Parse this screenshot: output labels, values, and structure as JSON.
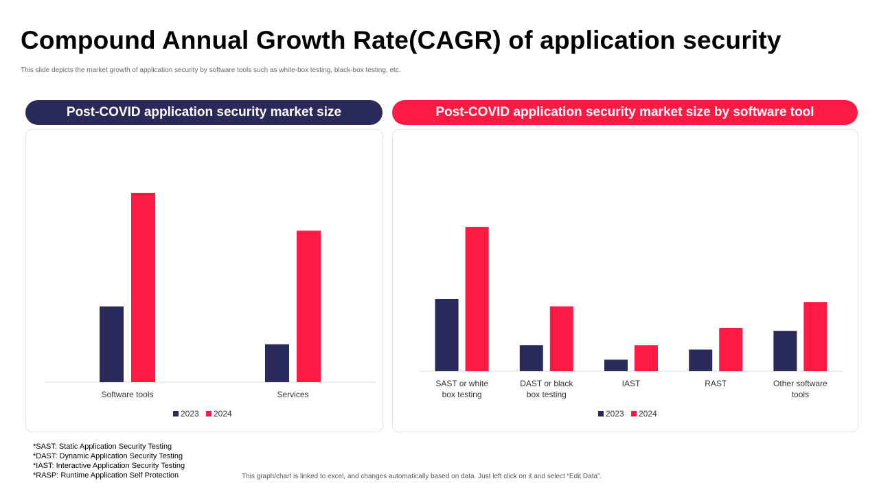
{
  "title": "Compound Annual Growth Rate(CAGR) of application security",
  "subtitle": "This slide depicts the market growth of application security by software tools such as white-box testing, black-box testing, etc.",
  "left_panel": {
    "header": "Post-COVID application security market size"
  },
  "right_panel": {
    "header": "Post-COVID application security market size by software tool"
  },
  "colors": {
    "navy": "#2a2a5a",
    "red": "#ff1a44"
  },
  "chart_data": [
    {
      "type": "bar",
      "title": "Post-COVID application security market size",
      "categories": [
        "Software tools",
        "Services"
      ],
      "series": [
        {
          "name": "2023",
          "color": "#2a2a5a",
          "values": [
            40,
            20
          ]
        },
        {
          "name": "2024",
          "color": "#ff1a44",
          "values": [
            100,
            80
          ]
        }
      ],
      "ylim": [
        0,
        100
      ],
      "grid": false,
      "legend": "bottom"
    },
    {
      "type": "bar",
      "title": "Post-COVID application security market size by software tool",
      "categories": [
        "SAST or white box testing",
        "DAST or black box testing",
        "IAST",
        "RAST",
        "Other software tools"
      ],
      "series": [
        {
          "name": "2023",
          "color": "#2a2a5a",
          "values": [
            50,
            18,
            8,
            15,
            28
          ]
        },
        {
          "name": "2024",
          "color": "#ff1a44",
          "values": [
            100,
            45,
            18,
            30,
            48
          ]
        }
      ],
      "ylim": [
        0,
        100
      ],
      "grid": false,
      "legend": "bottom"
    }
  ],
  "notes": [
    "*SAST: Static Application Security Testing",
    "*DAST: Dynamic Application Security Testing",
    "*IAST: Interactive Application Security Testing",
    "*RASP: Runtime Application Self Protection"
  ],
  "footer": "This graph/chart is linked to excel, and changes automatically based on data. Just left click on it and select “Edit Data”."
}
